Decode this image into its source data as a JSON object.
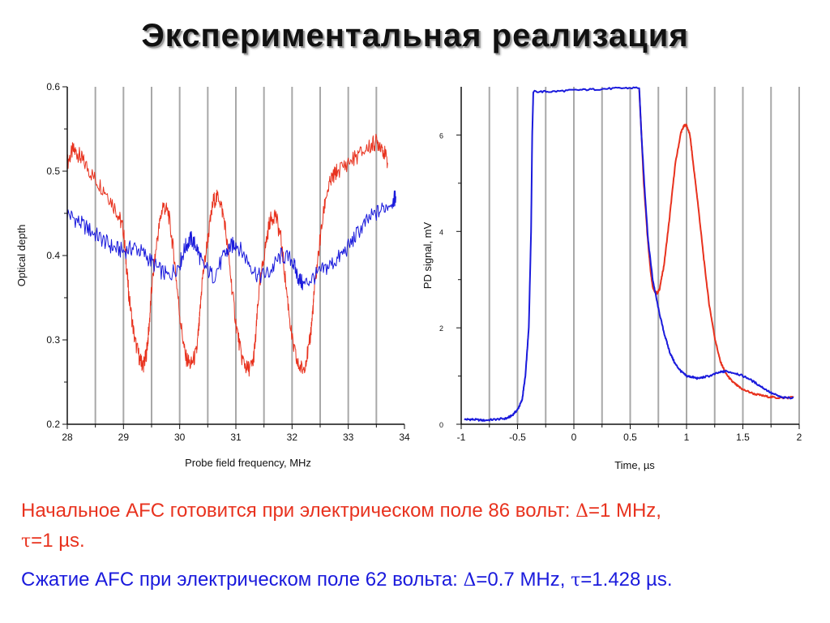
{
  "title": "Экспериментальная реализация",
  "colors": {
    "red": "#e8321e",
    "blue": "#1a1adc",
    "grid": "#a8a8a8"
  },
  "captions": {
    "red_line1": "Начальное AFC готовится при электрическом поле 86 вольт: ",
    "red_delta": "Δ",
    "red_line1_end": "=1 MHz,",
    "red_tau": "τ",
    "red_line2_end": "=1 µs.",
    "blue_line": "Сжатие AFC при электрическом поле 62 вольта: ",
    "blue_delta": "Δ",
    "blue_mid": "=0.7 MHz, ",
    "blue_tau": "τ",
    "blue_end": "=1.428 µs."
  },
  "chart_data": [
    {
      "type": "line",
      "xlabel": "Probe field frequency, MHz",
      "ylabel": "Optical depth",
      "xlim": [
        28,
        34
      ],
      "ylim": [
        0.2,
        0.6
      ],
      "xticks": [
        28,
        29,
        30,
        31,
        32,
        33,
        34
      ],
      "yticks": [
        0.2,
        0.3,
        0.4,
        0.5,
        0.6
      ],
      "ytick_labels": [
        "0.2",
        "0.3",
        "0.4",
        "0.5",
        "0.6"
      ],
      "vertical_grid": [
        28.5,
        29,
        29.5,
        30,
        30.5,
        31,
        31.5,
        32,
        32.5,
        33,
        33.5
      ],
      "series": [
        {
          "color": "red",
          "x": [
            28.0,
            28.1,
            28.2,
            28.3,
            28.5,
            28.7,
            28.9,
            29.0,
            29.05,
            29.1,
            29.2,
            29.3,
            29.35,
            29.4,
            29.45,
            29.5,
            29.6,
            29.7,
            29.8,
            29.9,
            30.0,
            30.1,
            30.2,
            30.3,
            30.35,
            30.4,
            30.5,
            30.6,
            30.7,
            30.8,
            30.9,
            31.0,
            31.1,
            31.2,
            31.3,
            31.35,
            31.4,
            31.5,
            31.6,
            31.7,
            31.8,
            31.9,
            32.0,
            32.1,
            32.2,
            32.3,
            32.35,
            32.4,
            32.5,
            32.6,
            32.7,
            32.8,
            33.0,
            33.2,
            33.4,
            33.5,
            33.6,
            33.7
          ],
          "y": [
            0.51,
            0.525,
            0.52,
            0.51,
            0.49,
            0.475,
            0.45,
            0.43,
            0.39,
            0.35,
            0.3,
            0.275,
            0.27,
            0.28,
            0.31,
            0.36,
            0.42,
            0.46,
            0.45,
            0.4,
            0.33,
            0.28,
            0.27,
            0.285,
            0.32,
            0.37,
            0.42,
            0.465,
            0.47,
            0.44,
            0.38,
            0.32,
            0.28,
            0.265,
            0.27,
            0.3,
            0.35,
            0.4,
            0.44,
            0.45,
            0.42,
            0.36,
            0.3,
            0.27,
            0.265,
            0.29,
            0.32,
            0.36,
            0.42,
            0.47,
            0.49,
            0.5,
            0.51,
            0.52,
            0.53,
            0.535,
            0.53,
            0.51
          ]
        },
        {
          "color": "blue",
          "x": [
            28.0,
            28.2,
            28.4,
            28.6,
            28.8,
            29.0,
            29.2,
            29.4,
            29.6,
            29.8,
            30.0,
            30.1,
            30.2,
            30.3,
            30.4,
            30.6,
            30.8,
            30.9,
            31.0,
            31.2,
            31.4,
            31.6,
            31.8,
            32.0,
            32.1,
            32.2,
            32.4,
            32.6,
            32.8,
            33.0,
            33.2,
            33.4,
            33.6,
            33.8,
            33.85
          ],
          "y": [
            0.45,
            0.44,
            0.43,
            0.42,
            0.41,
            0.405,
            0.41,
            0.4,
            0.385,
            0.375,
            0.39,
            0.41,
            0.42,
            0.41,
            0.39,
            0.375,
            0.4,
            0.41,
            0.415,
            0.395,
            0.375,
            0.38,
            0.4,
            0.395,
            0.375,
            0.365,
            0.375,
            0.385,
            0.395,
            0.41,
            0.43,
            0.445,
            0.455,
            0.465,
            0.47
          ]
        }
      ]
    },
    {
      "type": "line",
      "xlabel": "Time, µs",
      "ylabel": "PD signal, mV",
      "xlim": [
        -1,
        2
      ],
      "ylim": [
        0,
        7
      ],
      "xticks": [
        -1,
        -0.5,
        0,
        0.5,
        1,
        1.5,
        2
      ],
      "xtick_labels": [
        "-1",
        "-0.5",
        "0",
        "0.5",
        "1",
        "1.5",
        "2"
      ],
      "yticks": [
        0,
        2,
        4,
        6
      ],
      "vertical_grid": [
        -0.75,
        -0.5,
        -0.25,
        0,
        0.25,
        0.5,
        0.75,
        1,
        1.25,
        1.5,
        1.75,
        2
      ],
      "series": [
        {
          "color": "red",
          "x": [
            0.58,
            0.6,
            0.62,
            0.65,
            0.68,
            0.7,
            0.72,
            0.74,
            0.76,
            0.8,
            0.85,
            0.9,
            0.95,
            0.98,
            1.0,
            1.03,
            1.06,
            1.1,
            1.15,
            1.2,
            1.25,
            1.3,
            1.35,
            1.4,
            1.45,
            1.5,
            1.6,
            1.7,
            1.8,
            1.9,
            1.95
          ],
          "y": [
            6.95,
            6.0,
            5.0,
            4.0,
            3.2,
            2.85,
            2.75,
            2.72,
            2.8,
            3.3,
            4.3,
            5.4,
            6.05,
            6.2,
            6.2,
            6.0,
            5.4,
            4.6,
            3.5,
            2.5,
            1.8,
            1.3,
            1.05,
            0.9,
            0.8,
            0.72,
            0.63,
            0.58,
            0.55,
            0.55,
            0.56
          ]
        },
        {
          "color": "blue",
          "x": [
            -0.97,
            -0.9,
            -0.8,
            -0.7,
            -0.6,
            -0.55,
            -0.5,
            -0.46,
            -0.43,
            -0.4,
            -0.38,
            -0.37,
            -0.36,
            -0.2,
            0.0,
            0.2,
            0.4,
            0.58,
            0.6,
            0.63,
            0.66,
            0.7,
            0.75,
            0.8,
            0.85,
            0.9,
            0.95,
            1.0,
            1.05,
            1.1,
            1.2,
            1.3,
            1.35,
            1.45,
            1.55,
            1.65,
            1.75,
            1.85,
            1.95
          ],
          "y": [
            0.1,
            0.1,
            0.08,
            0.1,
            0.12,
            0.18,
            0.3,
            0.5,
            1.0,
            2.0,
            4.0,
            6.0,
            6.9,
            6.9,
            6.93,
            6.95,
            6.97,
            6.98,
            6.0,
            4.8,
            3.8,
            3.0,
            2.4,
            1.9,
            1.5,
            1.25,
            1.1,
            1.0,
            0.98,
            0.95,
            1.0,
            1.08,
            1.1,
            1.05,
            0.95,
            0.8,
            0.65,
            0.55,
            0.55
          ]
        }
      ]
    }
  ]
}
